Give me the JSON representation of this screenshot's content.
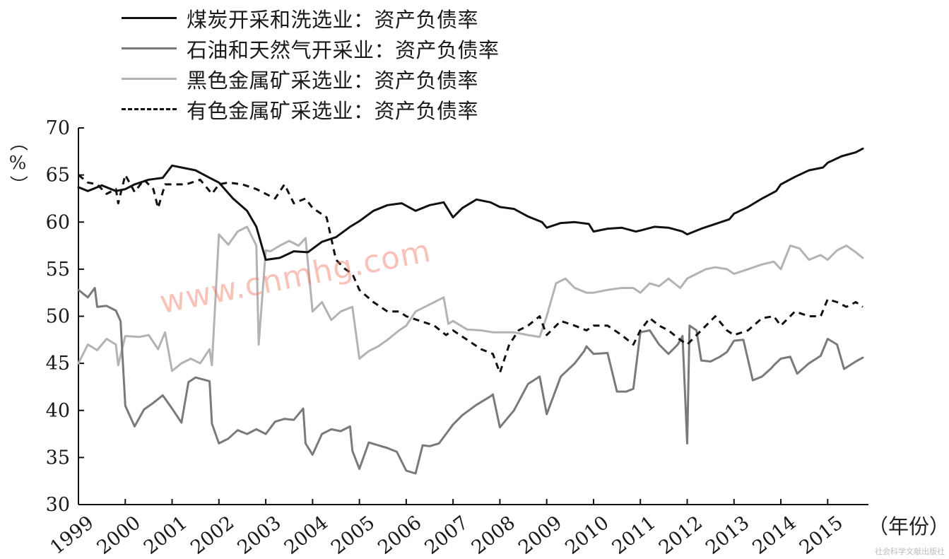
{
  "chart_data": {
    "type": "line",
    "ylabel": "（%）",
    "xlabel": "（年份）",
    "ylim": [
      30,
      70
    ],
    "yticks": [
      "30",
      "35",
      "40",
      "45",
      "50",
      "55",
      "60",
      "65",
      "70"
    ],
    "xlim": [
      1999,
      2015.75
    ],
    "xticks": [
      "1999",
      "2000",
      "2001",
      "2002",
      "2003",
      "2004",
      "2005",
      "2006",
      "2007",
      "2008",
      "2009",
      "2010",
      "2011",
      "2012",
      "2013",
      "2014",
      "2015"
    ],
    "grid": false,
    "legend_position": "top-left",
    "series": [
      {
        "name": "煤炭开采和洗选业：资产负债率",
        "color": "#111111",
        "dash": "solid",
        "x": [
          1999.0,
          1999.2,
          1999.5,
          1999.8,
          2000.0,
          2000.2,
          2000.5,
          2000.8,
          2001.0,
          2001.2,
          2001.5,
          2001.8,
          2002.0,
          2002.3,
          2002.6,
          2002.8,
          2003.0,
          2003.3,
          2003.6,
          2003.9,
          2004.2,
          2004.5,
          2004.8,
          2005.0,
          2005.3,
          2005.6,
          2005.9,
          2006.2,
          2006.5,
          2006.8,
          2007.0,
          2007.2,
          2007.5,
          2007.8,
          2008.0,
          2008.3,
          2008.6,
          2008.9,
          2009.0,
          2009.3,
          2009.6,
          2009.9,
          2010.0,
          2010.3,
          2010.6,
          2010.9,
          2011.0,
          2011.3,
          2011.6,
          2011.9,
          2012.0,
          2012.3,
          2012.6,
          2012.9,
          2013.0,
          2013.3,
          2013.6,
          2013.9,
          2014.0,
          2014.3,
          2014.6,
          2014.9,
          2015.0,
          2015.3,
          2015.6,
          2015.75
        ],
        "y": [
          63.7,
          63.3,
          63.9,
          63.3,
          63.5,
          64.0,
          64.5,
          64.7,
          66.0,
          65.8,
          65.5,
          64.7,
          64.2,
          62.5,
          61.2,
          59.5,
          56.0,
          56.2,
          56.9,
          56.8,
          57.9,
          58.4,
          59.5,
          60.1,
          61.2,
          61.8,
          62.0,
          61.2,
          61.8,
          62.1,
          60.5,
          61.5,
          62.4,
          62.1,
          61.6,
          61.4,
          60.6,
          60.0,
          59.4,
          59.9,
          60.0,
          59.8,
          59.0,
          59.3,
          59.4,
          59.0,
          59.1,
          59.5,
          59.4,
          59.0,
          58.7,
          59.3,
          59.8,
          60.3,
          60.9,
          61.6,
          62.5,
          63.3,
          64.0,
          64.8,
          65.5,
          65.8,
          66.3,
          67.0,
          67.4,
          67.8
        ]
      },
      {
        "name": "石油和天然气开采业：资产负债率",
        "color": "#7a7a7a",
        "dash": "solid",
        "x": [
          1999.0,
          1999.2,
          1999.35,
          1999.4,
          1999.6,
          1999.8,
          1999.9,
          2000.0,
          2000.2,
          2000.4,
          2000.6,
          2000.8,
          2001.0,
          2001.2,
          2001.35,
          2001.5,
          2001.8,
          2001.85,
          2002.0,
          2002.2,
          2002.4,
          2002.6,
          2002.8,
          2003.0,
          2003.2,
          2003.4,
          2003.6,
          2003.8,
          2003.85,
          2004.0,
          2004.2,
          2004.4,
          2004.6,
          2004.8,
          2004.85,
          2005.0,
          2005.2,
          2005.4,
          2005.6,
          2005.8,
          2006.0,
          2006.2,
          2006.35,
          2006.5,
          2006.7,
          2006.85,
          2007.0,
          2007.2,
          2007.5,
          2007.8,
          2007.85,
          2008.0,
          2008.3,
          2008.6,
          2008.85,
          2009.0,
          2009.3,
          2009.6,
          2009.8,
          2009.85,
          2010.0,
          2010.3,
          2010.5,
          2010.7,
          2010.85,
          2011.0,
          2011.2,
          2011.4,
          2011.6,
          2011.8,
          2011.9,
          2012.0,
          2012.05,
          2012.2,
          2012.3,
          2012.5,
          2012.7,
          2012.85,
          2013.0,
          2013.2,
          2013.4,
          2013.6,
          2013.8,
          2013.85,
          2014.0,
          2014.2,
          2014.35,
          2014.6,
          2014.85,
          2015.0,
          2015.2,
          2015.35,
          2015.6,
          2015.75
        ],
        "y": [
          52.8,
          52.0,
          53.0,
          51.0,
          51.1,
          50.6,
          49.5,
          40.5,
          38.3,
          40.1,
          40.8,
          41.6,
          40.2,
          38.7,
          43.0,
          43.5,
          43.1,
          38.6,
          36.5,
          37.0,
          37.9,
          37.5,
          38.0,
          37.5,
          38.8,
          39.1,
          39.0,
          40.2,
          36.5,
          35.3,
          37.5,
          38.0,
          37.8,
          38.3,
          35.7,
          33.8,
          36.6,
          36.3,
          36.0,
          35.6,
          33.6,
          33.3,
          36.3,
          36.2,
          36.5,
          37.5,
          38.5,
          39.5,
          40.6,
          41.5,
          41.7,
          38.2,
          40.0,
          42.8,
          43.6,
          39.6,
          43.6,
          45.0,
          46.3,
          46.8,
          46.0,
          46.1,
          42.0,
          42.0,
          42.3,
          48.3,
          48.5,
          47.0,
          46.0,
          47.0,
          47.9,
          36.5,
          49.0,
          48.5,
          45.3,
          45.2,
          45.7,
          46.2,
          47.4,
          47.5,
          43.2,
          43.6,
          44.5,
          44.8,
          45.5,
          45.7,
          43.9,
          45.0,
          45.8,
          47.6,
          47.0,
          44.4,
          45.2,
          45.6
        ]
      },
      {
        "name": "黑色金属矿采选业：资产负债率",
        "color": "#b3b3b3",
        "dash": "solid",
        "x": [
          1999.0,
          1999.2,
          1999.4,
          1999.6,
          1999.8,
          1999.85,
          2000.0,
          2000.3,
          2000.5,
          2000.7,
          2000.85,
          2001.0,
          2001.2,
          2001.4,
          2001.6,
          2001.8,
          2001.85,
          2002.0,
          2002.2,
          2002.4,
          2002.6,
          2002.8,
          2002.85,
          2003.0,
          2003.1,
          2003.3,
          2003.5,
          2003.7,
          2003.85,
          2004.0,
          2004.2,
          2004.4,
          2004.6,
          2004.85,
          2005.0,
          2005.2,
          2005.4,
          2005.6,
          2005.85,
          2006.0,
          2006.2,
          2006.4,
          2006.6,
          2006.8,
          2006.9,
          2007.0,
          2007.3,
          2007.6,
          2007.85,
          2008.0,
          2008.3,
          2008.6,
          2008.85,
          2009.0,
          2009.2,
          2009.4,
          2009.6,
          2009.85,
          2010.0,
          2010.3,
          2010.6,
          2010.85,
          2011.0,
          2011.2,
          2011.4,
          2011.6,
          2011.85,
          2012.0,
          2012.2,
          2012.4,
          2012.6,
          2012.85,
          2013.0,
          2013.3,
          2013.6,
          2013.85,
          2014.0,
          2014.2,
          2014.4,
          2014.6,
          2014.85,
          2015.0,
          2015.2,
          2015.4,
          2015.6,
          2015.75
        ],
        "y": [
          45.0,
          47.0,
          46.4,
          47.6,
          47.0,
          44.8,
          47.9,
          47.8,
          48.0,
          46.5,
          48.3,
          44.2,
          45.0,
          45.5,
          45.0,
          46.5,
          44.8,
          58.7,
          57.6,
          59.0,
          59.5,
          57.5,
          47.0,
          57.0,
          56.9,
          57.5,
          58.0,
          57.5,
          58.3,
          50.5,
          51.5,
          49.6,
          50.5,
          51.0,
          45.5,
          46.3,
          46.8,
          47.5,
          48.5,
          49.0,
          50.5,
          51.0,
          51.5,
          52.0,
          49.2,
          49.5,
          48.6,
          48.5,
          48.3,
          48.3,
          48.3,
          48.0,
          47.8,
          50.0,
          53.5,
          54.0,
          53.0,
          52.5,
          52.5,
          52.8,
          53.0,
          53.0,
          52.5,
          53.5,
          53.2,
          54.0,
          53.0,
          54.0,
          54.5,
          55.0,
          55.2,
          55.0,
          54.5,
          55.0,
          55.5,
          55.8,
          55.0,
          57.5,
          57.2,
          56.0,
          56.5,
          56.0,
          57.0,
          57.5,
          56.8,
          56.2
        ]
      },
      {
        "name": "有色金属矿采选业：资产负债率",
        "color": "#111111",
        "dash": "dashed",
        "x": [
          1999.0,
          1999.2,
          1999.4,
          1999.6,
          1999.8,
          1999.85,
          2000.0,
          2000.2,
          2000.4,
          2000.6,
          2000.7,
          2000.85,
          2001.0,
          2001.3,
          2001.6,
          2001.85,
          2002.0,
          2002.2,
          2002.5,
          2002.8,
          2003.0,
          2003.2,
          2003.4,
          2003.6,
          2003.85,
          2004.0,
          2004.3,
          2004.5,
          2004.7,
          2004.85,
          2005.0,
          2005.3,
          2005.6,
          2005.85,
          2006.0,
          2006.3,
          2006.6,
          2006.85,
          2007.0,
          2007.3,
          2007.6,
          2007.85,
          2008.0,
          2008.2,
          2008.4,
          2008.6,
          2008.85,
          2009.0,
          2009.3,
          2009.6,
          2009.85,
          2010.0,
          2010.3,
          2010.6,
          2010.85,
          2011.0,
          2011.2,
          2011.4,
          2011.6,
          2011.85,
          2012.0,
          2012.3,
          2012.6,
          2012.85,
          2013.0,
          2013.3,
          2013.6,
          2013.85,
          2014.0,
          2014.3,
          2014.6,
          2014.85,
          2015.0,
          2015.2,
          2015.4,
          2015.6,
          2015.75
        ],
        "y": [
          65.0,
          64.2,
          64.0,
          63.0,
          63.5,
          62.0,
          65.0,
          63.2,
          64.5,
          63.5,
          61.5,
          64.0,
          64.0,
          64.0,
          64.5,
          63.0,
          64.0,
          64.2,
          64.0,
          63.5,
          63.0,
          62.5,
          64.0,
          62.0,
          62.5,
          61.5,
          60.5,
          56.0,
          55.0,
          54.5,
          52.8,
          51.5,
          50.5,
          50.5,
          50.0,
          49.5,
          49.0,
          48.0,
          48.5,
          47.5,
          46.5,
          46.0,
          44.0,
          47.0,
          48.5,
          49.0,
          50.0,
          48.0,
          49.5,
          49.0,
          48.5,
          49.0,
          49.0,
          48.0,
          47.0,
          48.5,
          49.8,
          49.0,
          48.5,
          47.5,
          47.0,
          48.5,
          50.0,
          48.5,
          48.0,
          48.5,
          49.8,
          50.0,
          49.0,
          50.5,
          50.0,
          50.0,
          51.8,
          51.5,
          51.0,
          51.5,
          51.0
        ]
      }
    ]
  },
  "watermark": "www.cnmhg.com",
  "publisher": "社会科学文献出版社"
}
